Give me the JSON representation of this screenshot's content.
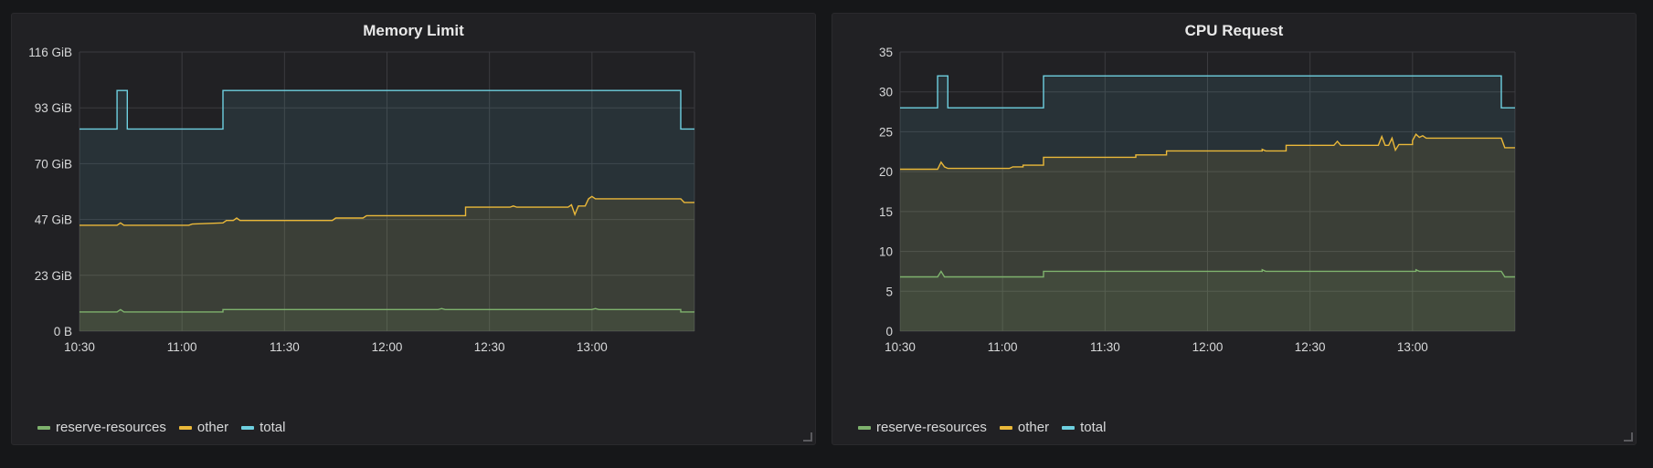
{
  "colors": {
    "reserve_resources": "#7eb26d",
    "other": "#eab839",
    "total": "#6ed0e0"
  },
  "panels": [
    {
      "title": "Memory Limit",
      "legend": [
        "reserve-resources",
        "other",
        "total"
      ]
    },
    {
      "title": "CPU Request",
      "legend": [
        "reserve-resources",
        "other",
        "total"
      ]
    }
  ],
  "chart_data": [
    {
      "type": "area",
      "title": "Memory Limit",
      "x_ticks": [
        "10:30",
        "11:00",
        "11:30",
        "12:00",
        "12:30",
        "13:00"
      ],
      "y_ticks": [
        "0 B",
        "23 GiB",
        "47 GiB",
        "70 GiB",
        "93 GiB",
        "116 GiB"
      ],
      "ylim": [
        0,
        116
      ],
      "xlim": [
        "10:30",
        "13:30"
      ],
      "unit": "GiB",
      "grid": true,
      "legend_position": "bottom-left",
      "series": [
        {
          "name": "total",
          "points": [
            [
              "10:30",
              84
            ],
            [
              "10:41",
              84
            ],
            [
              "10:41",
              100
            ],
            [
              "10:44",
              100
            ],
            [
              "10:44",
              84
            ],
            [
              "11:12",
              84
            ],
            [
              "11:12",
              100
            ],
            [
              "13:26",
              100
            ],
            [
              "13:26",
              84
            ],
            [
              "13:30",
              84
            ]
          ]
        },
        {
          "name": "other",
          "points": [
            [
              "10:30",
              44
            ],
            [
              "10:41",
              44
            ],
            [
              "10:42",
              45
            ],
            [
              "10:43",
              44
            ],
            [
              "11:02",
              44
            ],
            [
              "11:03",
              44.5
            ],
            [
              "11:12",
              45
            ],
            [
              "11:13",
              46
            ],
            [
              "11:15",
              46
            ],
            [
              "11:16",
              47
            ],
            [
              "11:17",
              46
            ],
            [
              "11:44",
              46
            ],
            [
              "11:45",
              47
            ],
            [
              "11:53",
              47
            ],
            [
              "11:54",
              48
            ],
            [
              "12:15",
              48
            ],
            [
              "12:23",
              48
            ],
            [
              "12:23",
              51.5
            ],
            [
              "12:36",
              51.5
            ],
            [
              "12:37",
              52
            ],
            [
              "12:38",
              51.5
            ],
            [
              "12:53",
              51.5
            ],
            [
              "12:54",
              52.5
            ],
            [
              "12:55",
              48.5
            ],
            [
              "12:56",
              52
            ],
            [
              "12:58",
              52
            ],
            [
              "12:59",
              55
            ],
            [
              "13:00",
              56
            ],
            [
              "13:01",
              55
            ],
            [
              "13:26",
              55
            ],
            [
              "13:27",
              53.5
            ],
            [
              "13:30",
              53.5
            ]
          ]
        },
        {
          "name": "reserve-resources",
          "points": [
            [
              "10:30",
              8
            ],
            [
              "10:41",
              8
            ],
            [
              "10:42",
              9
            ],
            [
              "10:43",
              8
            ],
            [
              "11:12",
              8
            ],
            [
              "11:12",
              9
            ],
            [
              "12:15",
              9
            ],
            [
              "12:16",
              9.4
            ],
            [
              "12:17",
              9
            ],
            [
              "13:00",
              9
            ],
            [
              "13:01",
              9.4
            ],
            [
              "13:02",
              9
            ],
            [
              "13:26",
              9
            ],
            [
              "13:26",
              8
            ],
            [
              "13:30",
              8
            ]
          ]
        }
      ]
    },
    {
      "type": "area",
      "title": "CPU Request",
      "x_ticks": [
        "10:30",
        "11:00",
        "11:30",
        "12:00",
        "12:30",
        "13:00"
      ],
      "y_ticks": [
        "0",
        "5",
        "10",
        "15",
        "20",
        "25",
        "30",
        "35"
      ],
      "ylim": [
        0,
        35
      ],
      "xlim": [
        "10:30",
        "13:30"
      ],
      "grid": true,
      "legend_position": "bottom-left",
      "series": [
        {
          "name": "total",
          "points": [
            [
              "10:30",
              28
            ],
            [
              "10:41",
              28
            ],
            [
              "10:41",
              32
            ],
            [
              "10:44",
              32
            ],
            [
              "10:44",
              28
            ],
            [
              "11:12",
              28
            ],
            [
              "11:12",
              32
            ],
            [
              "13:26",
              32
            ],
            [
              "13:26",
              28
            ],
            [
              "13:30",
              28
            ]
          ]
        },
        {
          "name": "other",
          "points": [
            [
              "10:30",
              20.3
            ],
            [
              "10:41",
              20.3
            ],
            [
              "10:42",
              21.2
            ],
            [
              "10:43",
              20.6
            ],
            [
              "10:44",
              20.4
            ],
            [
              "11:02",
              20.4
            ],
            [
              "11:03",
              20.6
            ],
            [
              "11:06",
              20.6
            ],
            [
              "11:06",
              20.8
            ],
            [
              "11:12",
              20.8
            ],
            [
              "11:12",
              21.8
            ],
            [
              "11:39",
              21.8
            ],
            [
              "11:39",
              22.1
            ],
            [
              "11:48",
              22.1
            ],
            [
              "11:48",
              22.6
            ],
            [
              "12:16",
              22.6
            ],
            [
              "12:16",
              22.8
            ],
            [
              "12:17",
              22.6
            ],
            [
              "12:23",
              22.6
            ],
            [
              "12:23",
              23.3
            ],
            [
              "12:37",
              23.3
            ],
            [
              "12:38",
              23.8
            ],
            [
              "12:39",
              23.3
            ],
            [
              "12:50",
              23.3
            ],
            [
              "12:51",
              24.4
            ],
            [
              "12:52",
              23.3
            ],
            [
              "12:53",
              23.3
            ],
            [
              "12:54",
              24.2
            ],
            [
              "12:55",
              22.7
            ],
            [
              "12:56",
              23.4
            ],
            [
              "13:00",
              23.4
            ],
            [
              "13:00",
              23.9
            ],
            [
              "13:01",
              24.7
            ],
            [
              "13:02",
              24.3
            ],
            [
              "13:03",
              24.5
            ],
            [
              "13:04",
              24.2
            ],
            [
              "13:26",
              24.2
            ],
            [
              "13:27",
              23
            ],
            [
              "13:30",
              23
            ]
          ]
        },
        {
          "name": "reserve-resources",
          "points": [
            [
              "10:30",
              6.8
            ],
            [
              "10:41",
              6.8
            ],
            [
              "10:42",
              7.5
            ],
            [
              "10:43",
              6.8
            ],
            [
              "11:12",
              6.8
            ],
            [
              "11:12",
              7.5
            ],
            [
              "12:16",
              7.5
            ],
            [
              "12:16",
              7.7
            ],
            [
              "12:17",
              7.5
            ],
            [
              "13:01",
              7.5
            ],
            [
              "13:01",
              7.7
            ],
            [
              "13:02",
              7.5
            ],
            [
              "13:26",
              7.5
            ],
            [
              "13:27",
              6.8
            ],
            [
              "13:30",
              6.8
            ]
          ]
        }
      ]
    }
  ]
}
